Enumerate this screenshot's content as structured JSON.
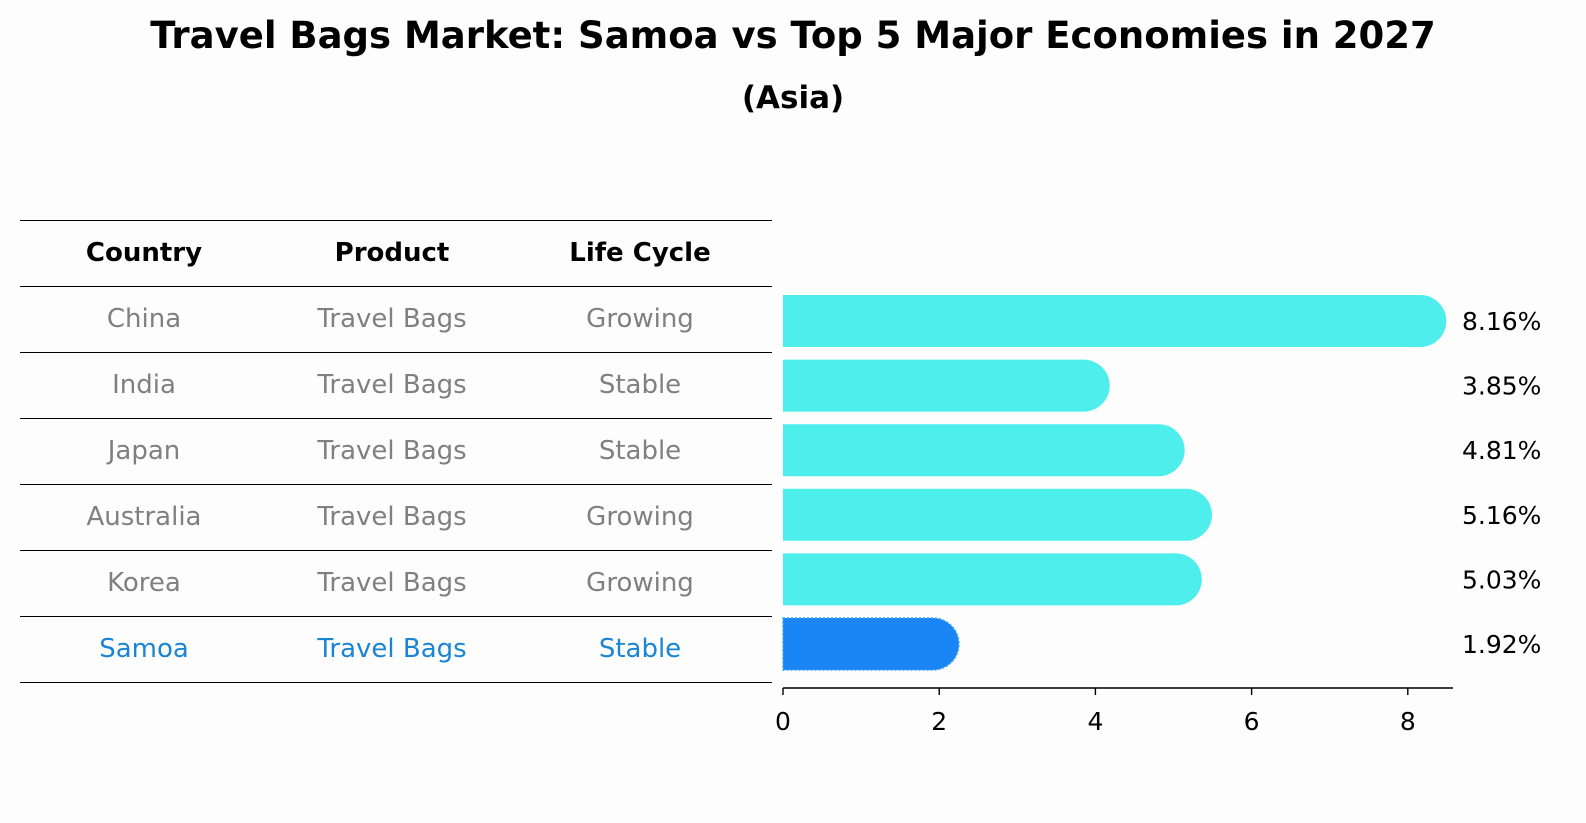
{
  "title": "Travel Bags Market: Samoa vs Top 5 Major Economies in 2027",
  "subtitle": "(Asia)",
  "table": {
    "headers": [
      "Country",
      "Product",
      "Life Cycle"
    ],
    "rows": [
      {
        "country": "China",
        "product": "Travel Bags",
        "life_cycle": "Growing"
      },
      {
        "country": "India",
        "product": "Travel Bags",
        "life_cycle": "Stable"
      },
      {
        "country": "Japan",
        "product": "Travel Bags",
        "life_cycle": "Stable"
      },
      {
        "country": "Australia",
        "product": "Travel Bags",
        "life_cycle": "Growing"
      },
      {
        "country": "Korea",
        "product": "Travel Bags",
        "life_cycle": "Growing"
      },
      {
        "country": "Samoa",
        "product": "Travel Bags",
        "life_cycle": "Stable"
      }
    ]
  },
  "colors": {
    "bar": "#4ded eb",
    "highlight_bar": "#1a85f5",
    "highlight_text": "#1a85d4",
    "muted_text": "#808080"
  },
  "chart_data": {
    "type": "bar",
    "orientation": "horizontal",
    "categories": [
      "China",
      "India",
      "Japan",
      "Australia",
      "Korea",
      "Samoa"
    ],
    "values": [
      8.16,
      3.85,
      4.81,
      5.16,
      5.03,
      1.92
    ],
    "value_labels": [
      "8.16%",
      "3.85%",
      "4.81%",
      "5.16%",
      "5.03%",
      "1.92%"
    ],
    "highlight": "Samoa",
    "xlim": [
      0,
      8.6
    ],
    "xticks": [
      0,
      2,
      4,
      6,
      8
    ],
    "xlabel": "",
    "ylabel": "",
    "grid": false,
    "legend": "none"
  }
}
